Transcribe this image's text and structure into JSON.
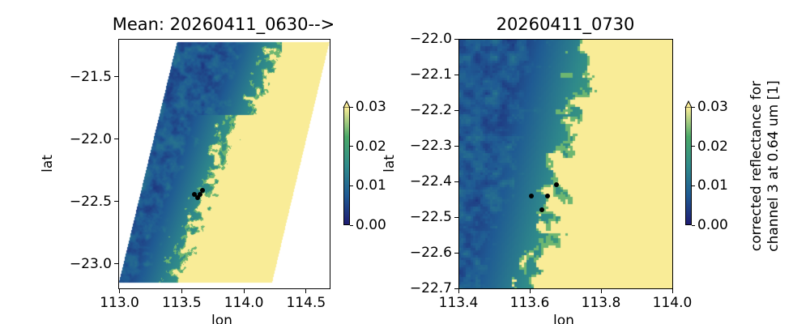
{
  "chart_data": [
    {
      "type": "heatmap",
      "title": "Mean: 20260411_0630-->",
      "xlabel": "lon",
      "ylabel": "lat",
      "xlim": [
        112.99,
        114.69
      ],
      "ylim": [
        -23.195,
        -21.195
      ],
      "xticks": [
        "113.0",
        "113.5",
        "114.0",
        "114.5"
      ],
      "yticks": [
        "-21.5",
        "-22.0",
        "-22.5",
        "-23.0"
      ],
      "points": [
        {
          "lon": 113.6,
          "lat": -22.44
        },
        {
          "lon": 113.665,
          "lat": -22.41
        },
        {
          "lon": 113.65,
          "lat": -22.44
        },
        {
          "lon": 113.63,
          "lat": -22.47
        }
      ],
      "colorbar": {
        "vmin": 0.0,
        "vmax": 0.03,
        "extend": "max",
        "ticks": [
          "0.00",
          "0.01",
          "0.02",
          "0.03"
        ],
        "label": ""
      }
    },
    {
      "type": "heatmap",
      "title": "20260411_0730",
      "xlabel": "lon",
      "ylabel": "lat",
      "xlim": [
        113.4,
        114.0
      ],
      "ylim": [
        -22.7,
        -22.0
      ],
      "xticks": [
        "113.4",
        "113.6",
        "113.8",
        "114.0"
      ],
      "yticks": [
        "-22.0",
        "-22.1",
        "-22.2",
        "-22.3",
        "-22.4",
        "-22.5",
        "-22.6",
        "-22.7"
      ],
      "points": [
        {
          "lon": 113.605,
          "lat": -22.44
        },
        {
          "lon": 113.675,
          "lat": -22.41
        },
        {
          "lon": 113.65,
          "lat": -22.44
        },
        {
          "lon": 113.635,
          "lat": -22.48
        }
      ],
      "colorbar": {
        "vmin": 0.0,
        "vmax": 0.03,
        "extend": "max",
        "ticks": [
          "0.00",
          "0.01",
          "0.02",
          "0.03"
        ],
        "label_line1": "corrected reflectance for",
        "label_line2": "channel 3 at 0.64 um [1]"
      }
    }
  ],
  "colormap": [
    "#1e1c72",
    "#1f5a93",
    "#2f8a8a",
    "#4aa868",
    "#f9ec97"
  ],
  "point_color": "#000000"
}
